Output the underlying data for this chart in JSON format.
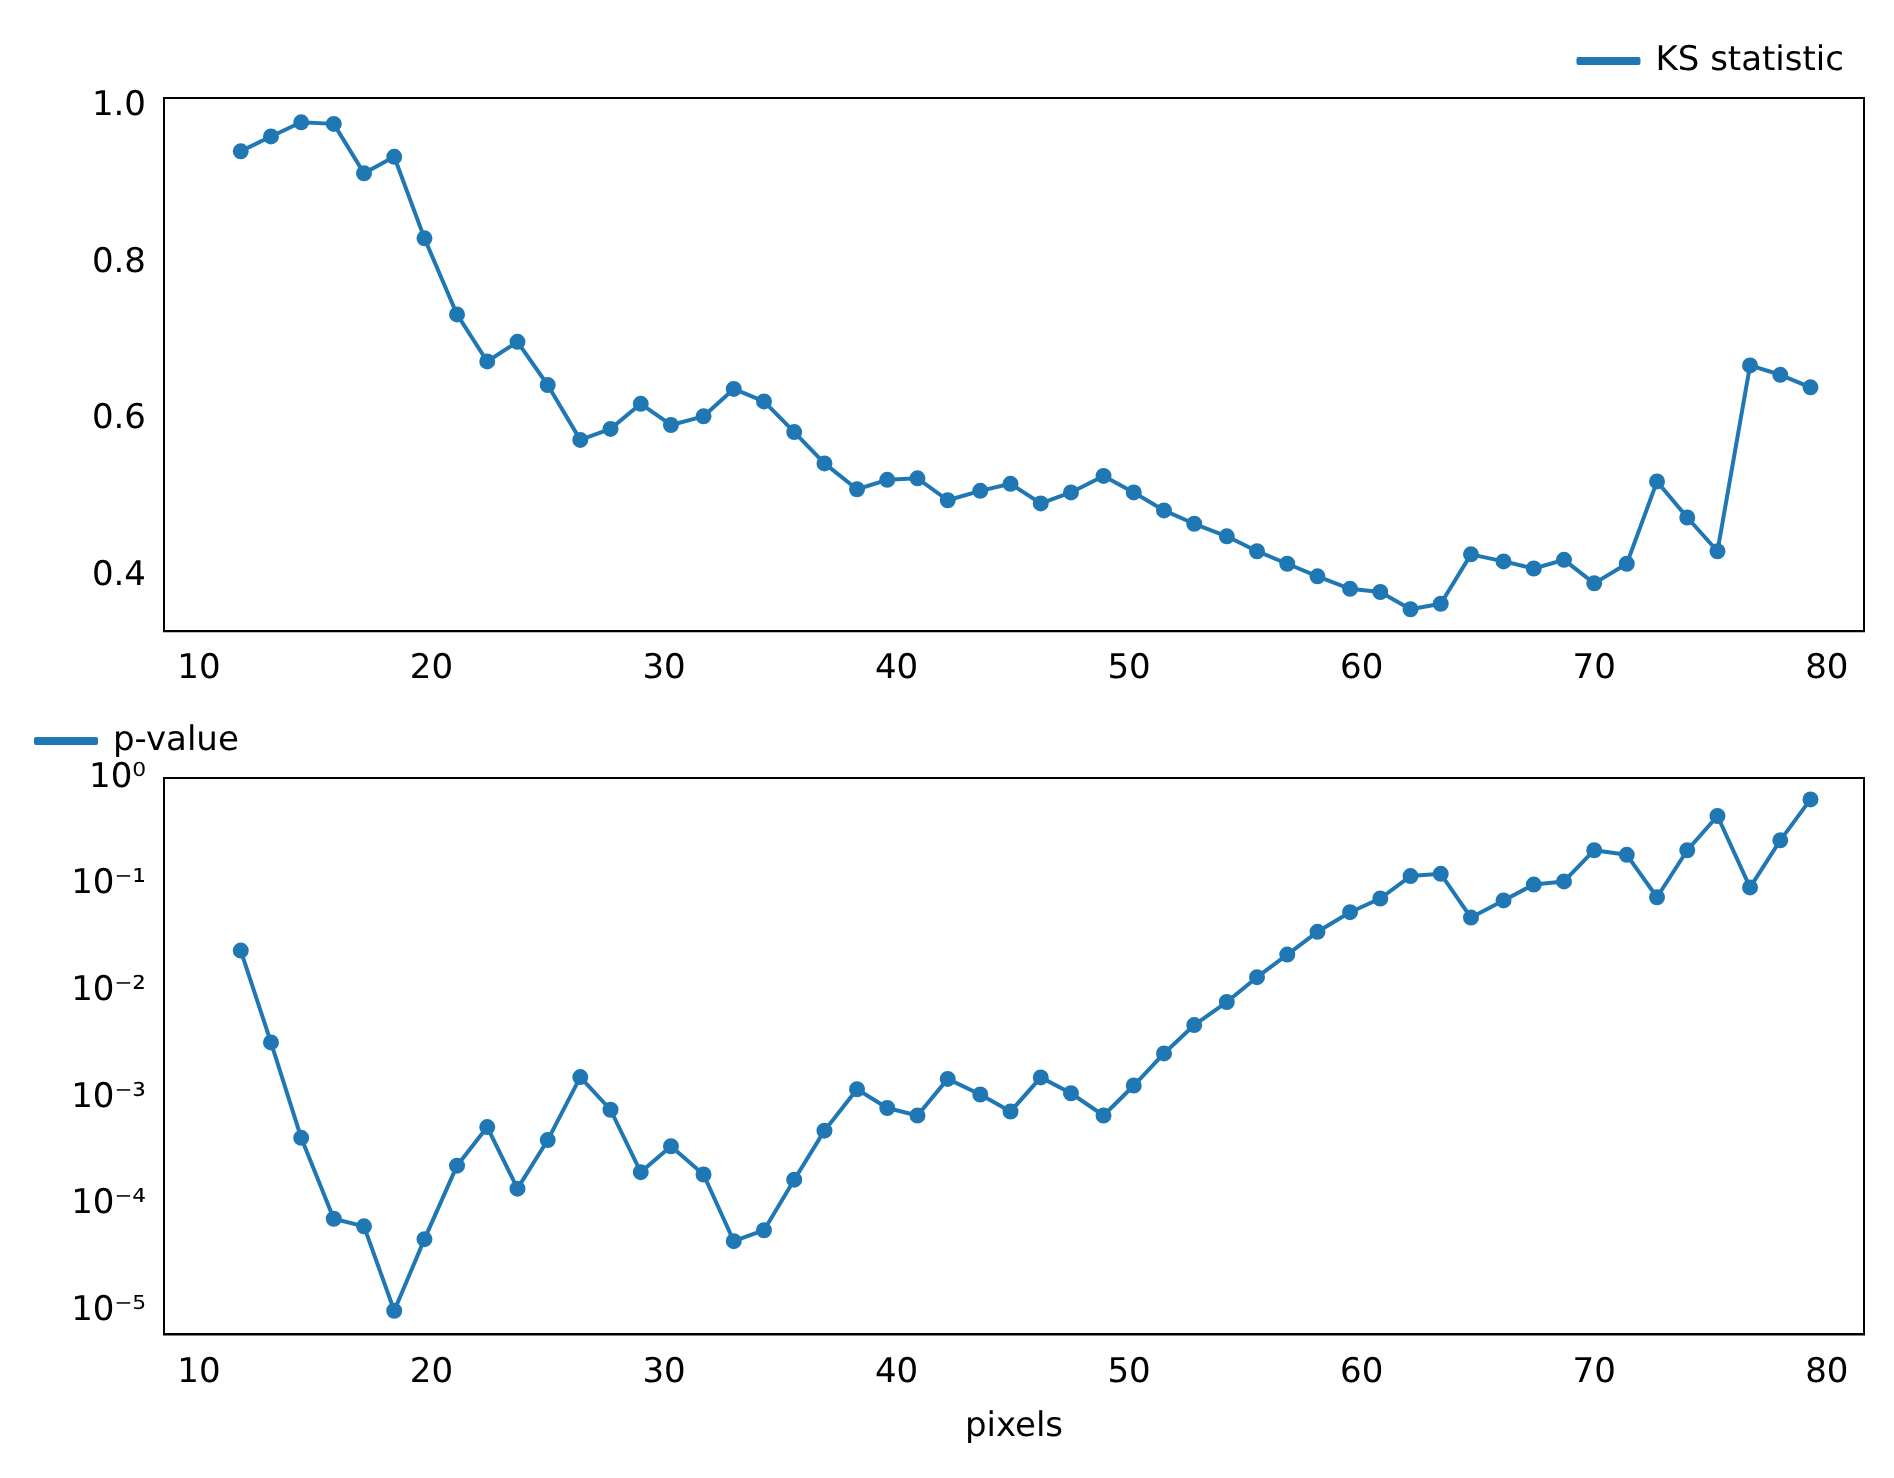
{
  "chart_data": [
    {
      "type": "line",
      "x": [
        11.8,
        13.1,
        14.4,
        15.8,
        17.1,
        18.4,
        19.7,
        21.1,
        22.4,
        23.7,
        25.0,
        26.4,
        27.7,
        29.0,
        30.3,
        31.7,
        33.0,
        34.3,
        35.6,
        36.9,
        38.3,
        39.6,
        40.9,
        42.2,
        43.6,
        44.9,
        46.2,
        47.5,
        48.9,
        50.2,
        51.5,
        52.8,
        54.2,
        55.5,
        56.8,
        58.1,
        59.5,
        60.8,
        62.1,
        63.4,
        64.7,
        66.1,
        67.4,
        68.7,
        70.0,
        71.4,
        72.7,
        74.0,
        75.3,
        76.7,
        78.0,
        79.3
      ],
      "series": [
        {
          "name": "KS statistic",
          "color": "#1f77b4",
          "values": [
            0.942,
            0.961,
            0.979,
            0.977,
            0.914,
            0.935,
            0.831,
            0.734,
            0.674,
            0.699,
            0.644,
            0.574,
            0.588,
            0.62,
            0.593,
            0.604,
            0.639,
            0.623,
            0.584,
            0.544,
            0.511,
            0.523,
            0.525,
            0.497,
            0.509,
            0.518,
            0.493,
            0.507,
            0.528,
            0.507,
            0.484,
            0.467,
            0.451,
            0.432,
            0.416,
            0.4,
            0.384,
            0.38,
            0.358,
            0.365,
            0.428,
            0.419,
            0.41,
            0.421,
            0.391,
            0.416,
            0.521,
            0.475,
            0.432,
            0.669,
            0.657,
            0.641
          ]
        }
      ],
      "xlim": [
        8.5,
        81.6
      ],
      "xticks": [
        10,
        20,
        30,
        40,
        50,
        60,
        70,
        80
      ],
      "ylim": [
        0.33,
        1.01
      ],
      "yticks": [
        {
          "value": 0.4,
          "label": "0.4"
        },
        {
          "value": 0.6,
          "label": "0.6"
        },
        {
          "value": 0.8,
          "label": "0.8"
        },
        {
          "value": 1.0,
          "label": "1.0"
        }
      ],
      "legend": "top right",
      "marker": "circle",
      "line_style": "solid"
    },
    {
      "type": "line",
      "xlabel": "pixels",
      "log": "y",
      "x": [
        11.8,
        13.1,
        14.4,
        15.8,
        17.1,
        18.4,
        19.7,
        21.1,
        22.4,
        23.7,
        25.0,
        26.4,
        27.7,
        29.0,
        30.3,
        31.7,
        33.0,
        34.3,
        35.6,
        36.9,
        38.3,
        39.6,
        40.9,
        42.2,
        43.6,
        44.9,
        46.2,
        47.5,
        48.9,
        50.2,
        51.5,
        52.8,
        54.2,
        55.5,
        56.8,
        58.1,
        59.5,
        60.8,
        62.1,
        63.4,
        64.7,
        66.1,
        67.4,
        68.7,
        70.0,
        71.4,
        72.7,
        74.0,
        75.3,
        76.7,
        78.0,
        79.3
      ],
      "series": [
        {
          "name": "p-value",
          "color": "#1f77b4",
          "values": [
            0.024,
            0.0033,
            0.00042,
            7.3e-05,
            6.2e-05,
            1e-05,
            4.7e-05,
            0.00023,
            0.00053,
            0.00014,
            0.0004,
            0.00156,
            0.00077,
            0.0002,
            0.00035,
            0.00019,
            4.5e-05,
            5.7e-05,
            0.00017,
            0.00049,
            0.0012,
            0.0008,
            0.00068,
            0.0015,
            0.00107,
            0.00074,
            0.00155,
            0.0011,
            0.00068,
            0.0013,
            0.0026,
            0.0048,
            0.0079,
            0.0135,
            0.022,
            0.036,
            0.055,
            0.074,
            0.12,
            0.126,
            0.049,
            0.071,
            0.1,
            0.107,
            0.21,
            0.19,
            0.076,
            0.21,
            0.44,
            0.094,
            0.26,
            0.63
          ]
        }
      ],
      "xlim": [
        8.5,
        81.6
      ],
      "xticks": [
        10,
        20,
        30,
        40,
        50,
        60,
        70,
        80
      ],
      "ylim": [
        6e-06,
        1
      ],
      "yticks": [
        {
          "value": 1e-05,
          "label": "10⁻⁵"
        },
        {
          "value": 0.0001,
          "label": "10⁻⁴"
        },
        {
          "value": 0.001,
          "label": "10⁻³"
        },
        {
          "value": 0.01,
          "label": "10⁻²"
        },
        {
          "value": 0.1,
          "label": "10⁻¹"
        },
        {
          "value": 1,
          "label": "10⁰"
        }
      ],
      "legend": "top left",
      "marker": "circle",
      "line_style": "solid"
    }
  ]
}
